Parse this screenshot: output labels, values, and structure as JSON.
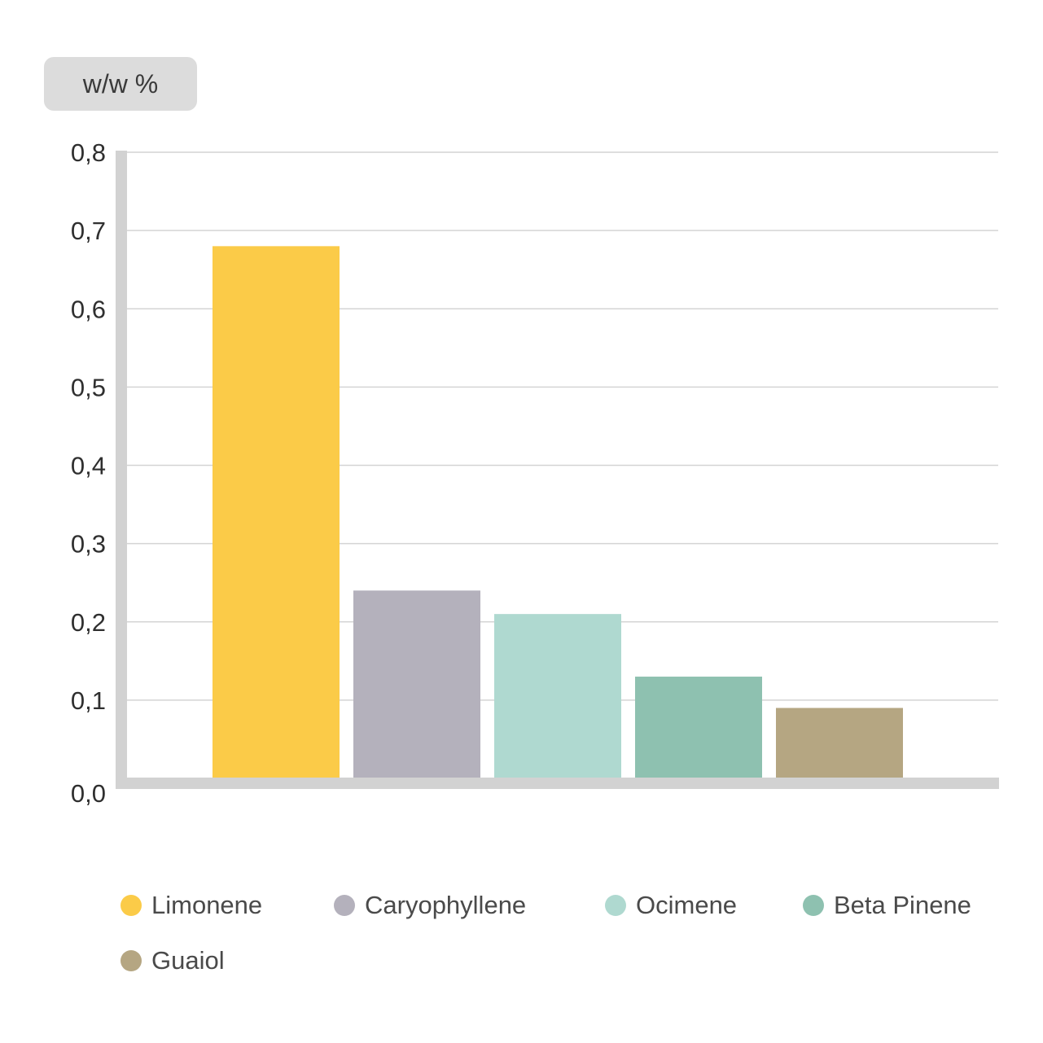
{
  "unit_label": "w/w %",
  "chart_data": {
    "type": "bar",
    "categories": [
      "Limonene",
      "Caryophyllene",
      "Ocimene",
      "Beta Pinene",
      "Guaiol"
    ],
    "values": [
      0.68,
      0.24,
      0.21,
      0.13,
      0.09
    ],
    "colors": [
      "#fbcb48",
      "#b4b1bc",
      "#afd9d0",
      "#8ec1b0",
      "#b5a682"
    ],
    "ylabel": "w/w %",
    "ylim": [
      0,
      0.8
    ],
    "yticks": [
      0,
      0.1,
      0.2,
      0.3,
      0.4,
      0.5,
      0.6,
      0.7,
      0.8
    ],
    "ytick_labels": [
      "0,0",
      "0,1",
      "0,2",
      "0,3",
      "0,4",
      "0,5",
      "0,6",
      "0,7",
      "0,8"
    ],
    "grid": true,
    "legend_position": "bottom"
  },
  "legend": [
    {
      "label": "Limonene",
      "color": "#fbcb48"
    },
    {
      "label": "Caryophyllene",
      "color": "#b4b1bc"
    },
    {
      "label": "Ocimene",
      "color": "#afd9d0"
    },
    {
      "label": "Beta Pinene",
      "color": "#8ec1b0"
    },
    {
      "label": "Guaiol",
      "color": "#b5a682"
    }
  ]
}
